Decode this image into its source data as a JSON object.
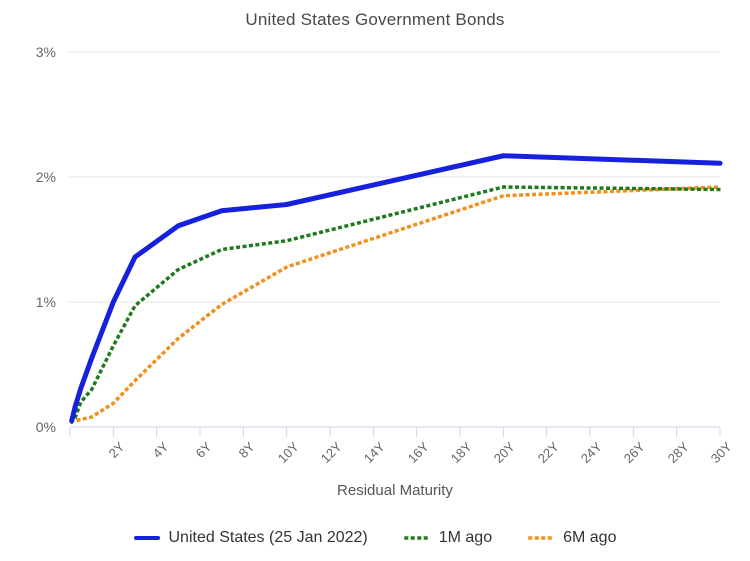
{
  "title": "United States Government Bonds",
  "x_axis_title": "Residual Maturity",
  "colors": {
    "us_line": "#1621dd",
    "one_month_ago_line": "#1e7a1e",
    "six_months_ago_line": "#f28f1d",
    "gridline": "#e6e6e6",
    "axis_line": "#ccd6eb",
    "axis_label_text": "#666666",
    "title_text": "#45484d",
    "legend_text": "#333333"
  },
  "chart_data": {
    "type": "line",
    "title": "United States Government Bonds",
    "xlabel": "Residual Maturity",
    "ylabel": "",
    "xlim": [
      0,
      30
    ],
    "ylim": [
      0,
      3
    ],
    "grid": "horizontal gridlines at 1%, 2%, 3%",
    "legend_position": "bottom",
    "x_ticks": [
      "2Y",
      "4Y",
      "6Y",
      "8Y",
      "10Y",
      "12Y",
      "14Y",
      "16Y",
      "18Y",
      "20Y",
      "22Y",
      "24Y",
      "26Y",
      "28Y",
      "30Y"
    ],
    "y_ticks": [
      "0%",
      "1%",
      "2%",
      "3%"
    ],
    "x_maturity_years": [
      0.08,
      0.25,
      0.5,
      1,
      2,
      3,
      5,
      7,
      10,
      20,
      30
    ],
    "y_unit": "percent",
    "series": [
      {
        "name": "United States (25 Jan 2022)",
        "style": "solid",
        "color": "#1621dd",
        "values": [
          0.05,
          0.17,
          0.31,
          0.55,
          1.0,
          1.36,
          1.61,
          1.73,
          1.78,
          2.17,
          2.11
        ]
      },
      {
        "name": "1M ago",
        "style": "dotted",
        "color": "#1e7a1e",
        "values": [
          0.04,
          0.08,
          0.2,
          0.3,
          0.65,
          0.97,
          1.26,
          1.42,
          1.49,
          1.92,
          1.9
        ]
      },
      {
        "name": "6M ago",
        "style": "dotted",
        "color": "#f28f1d",
        "values": [
          0.05,
          0.05,
          0.06,
          0.08,
          0.19,
          0.37,
          0.71,
          0.98,
          1.28,
          1.85,
          1.92
        ]
      }
    ]
  }
}
